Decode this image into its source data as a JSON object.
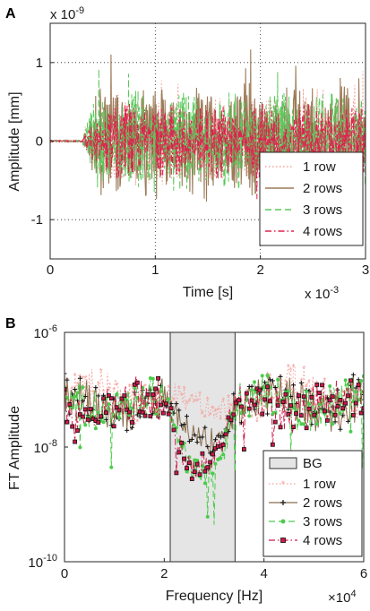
{
  "chart_data": [
    {
      "panel": "A",
      "type": "line",
      "xlabel": "Time [s]",
      "ylabel": "Amplitude [mm]",
      "x_multiplier": "x 10",
      "x_multiplier_exp": "-3",
      "y_multiplier": "x 10",
      "y_multiplier_exp": "-9",
      "xlim": [
        0,
        3
      ],
      "ylim": [
        -1.5,
        1.5
      ],
      "xticks": [
        "0",
        "1",
        "2",
        "3"
      ],
      "yticks": [
        "-1",
        "0",
        "1"
      ],
      "grid": "dotted",
      "legend_placement": "bottom-right",
      "signal_onset": 0.3,
      "series": [
        {
          "name": "1 row",
          "color": "#f4a09a",
          "style": "dotted",
          "amplitude": 0.6
        },
        {
          "name": "2 rows",
          "color": "#9c7b58",
          "style": "solid",
          "amplitude": 0.75
        },
        {
          "name": "3 rows",
          "color": "#5cc95c",
          "style": "dashed",
          "amplitude": 0.65
        },
        {
          "name": "4 rows",
          "color": "#e0204e",
          "style": "dashdot",
          "amplitude": 0.5
        }
      ]
    },
    {
      "panel": "B",
      "type": "line",
      "xlabel": "Frequency [Hz]",
      "ylabel": "FT Amplitude",
      "x_multiplier": "×10",
      "x_multiplier_exp": "4",
      "xlim": [
        0,
        6
      ],
      "yscale": "log",
      "ylim_exp": [
        -10,
        -6
      ],
      "xticks": [
        "0",
        "2",
        "4",
        "6"
      ],
      "yticks": [
        {
          "base": "10",
          "exp": "-6",
          "value": -6
        },
        {
          "base": "10",
          "exp": "-8",
          "value": -8
        },
        {
          "base": "10",
          "exp": "-10",
          "value": -10
        }
      ],
      "band_gap": {
        "label": "BG",
        "from": 2.12,
        "to": 3.42,
        "color": "#e5e5e5"
      },
      "legend_placement": "bottom-right",
      "series": [
        {
          "name": "1 row",
          "color": "#f4a09a",
          "style": "dotted",
          "marker": "star"
        },
        {
          "name": "2 rows",
          "color": "#8b6e4e",
          "style": "solid",
          "marker": "plus"
        },
        {
          "name": "3 rows",
          "color": "#4ccc4c",
          "style": "dashed",
          "marker": "dot"
        },
        {
          "name": "4 rows",
          "color": "#d01848",
          "style": "dashdot",
          "marker": "square"
        }
      ]
    }
  ]
}
